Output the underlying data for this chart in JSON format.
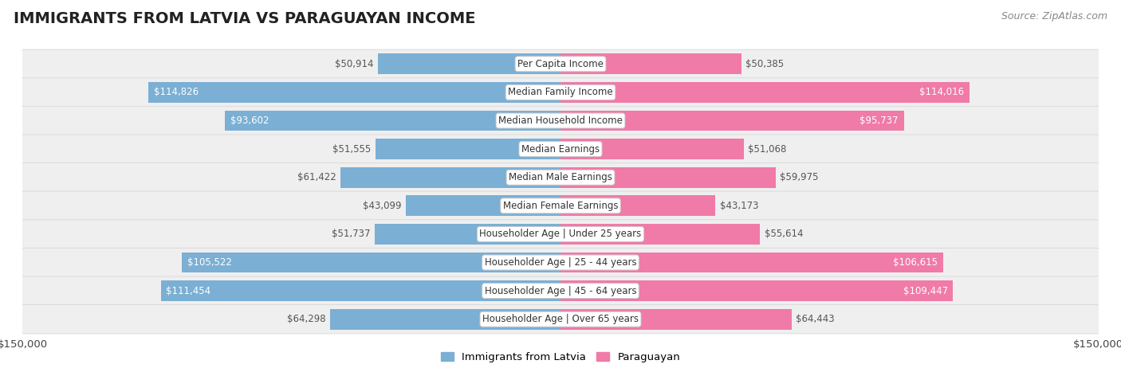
{
  "title": "IMMIGRANTS FROM LATVIA VS PARAGUAYAN INCOME",
  "source": "Source: ZipAtlas.com",
  "categories": [
    "Per Capita Income",
    "Median Family Income",
    "Median Household Income",
    "Median Earnings",
    "Median Male Earnings",
    "Median Female Earnings",
    "Householder Age | Under 25 years",
    "Householder Age | 25 - 44 years",
    "Householder Age | 45 - 64 years",
    "Householder Age | Over 65 years"
  ],
  "latvia_values": [
    50914,
    114826,
    93602,
    51555,
    61422,
    43099,
    51737,
    105522,
    111454,
    64298
  ],
  "paraguayan_values": [
    50385,
    114016,
    95737,
    51068,
    59975,
    43173,
    55614,
    106615,
    109447,
    64443
  ],
  "latvia_labels": [
    "$50,914",
    "$114,826",
    "$93,602",
    "$51,555",
    "$61,422",
    "$43,099",
    "$51,737",
    "$105,522",
    "$111,454",
    "$64,298"
  ],
  "paraguayan_labels": [
    "$50,385",
    "$114,016",
    "$95,737",
    "$51,068",
    "$59,975",
    "$43,173",
    "$55,614",
    "$106,615",
    "$109,447",
    "$64,443"
  ],
  "max_value": 150000,
  "latvia_color": "#7bafd4",
  "paraguayan_color": "#f07aa8",
  "background_color": "#ffffff",
  "row_bg_color": "#efefef",
  "row_border_color": "#d8d8d8",
  "bar_height": 0.72,
  "inside_threshold": 75000,
  "label_color_inside": "#ffffff",
  "label_color_outside": "#555555",
  "title_fontsize": 14,
  "source_fontsize": 9,
  "category_fontsize": 8.5,
  "value_fontsize": 8.5,
  "legend_fontsize": 9.5,
  "axis_label": "$150,000",
  "legend_labels": [
    "Immigrants from Latvia",
    "Paraguayan"
  ]
}
